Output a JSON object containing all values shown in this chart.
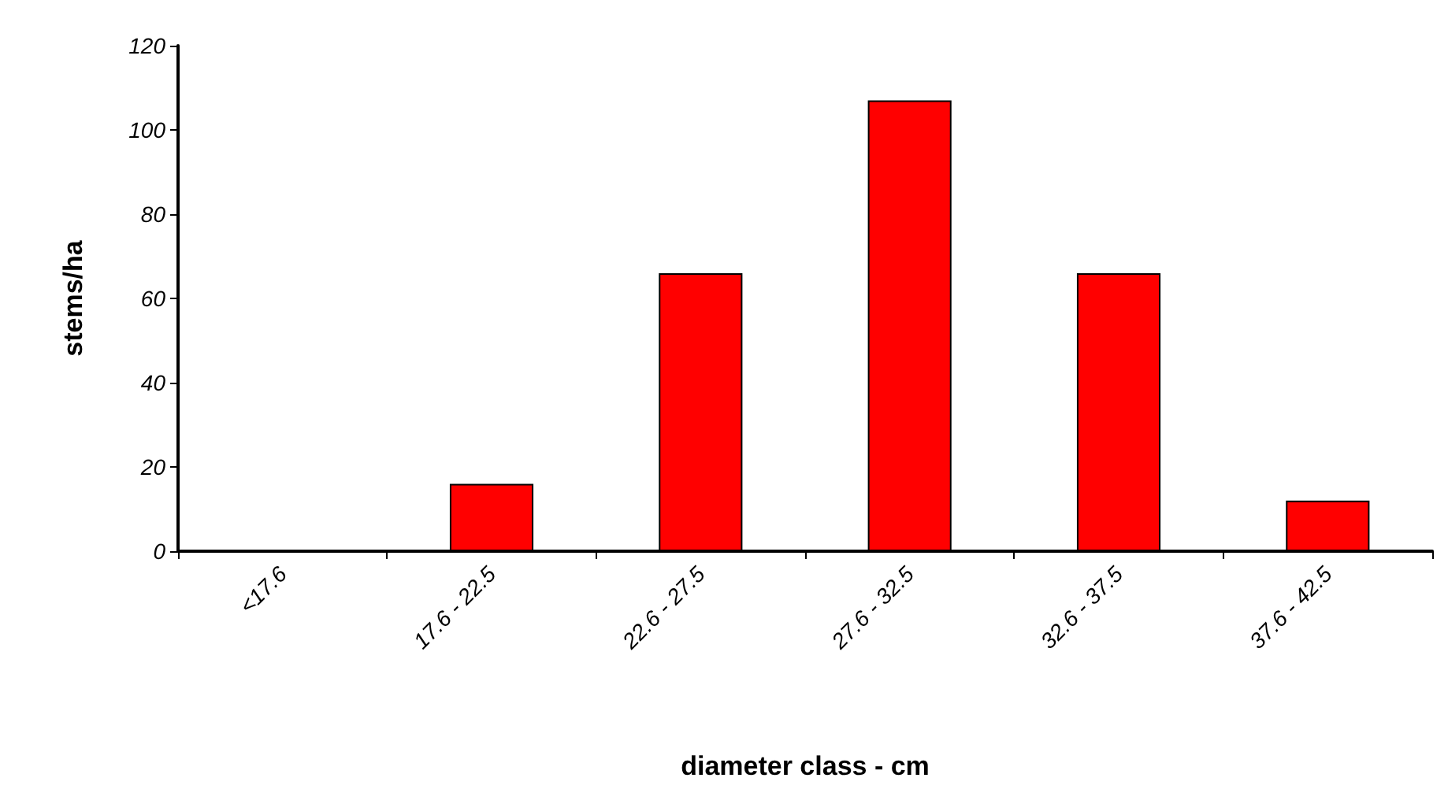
{
  "chart_data": {
    "type": "bar",
    "xlabel": "diameter class - cm",
    "ylabel": "stems/ha",
    "categories": [
      "<17.6",
      "17.6 - 22.5",
      "22.6 - 27.5",
      "27.6 - 32.5",
      "32.6 - 37.5",
      "37.6 - 42.5"
    ],
    "values": [
      0,
      16,
      66,
      107,
      66,
      12
    ],
    "color": "#ff0000",
    "ylim": [
      0,
      120
    ],
    "yticks": [
      0,
      20,
      40,
      60,
      80,
      100,
      120
    ],
    "grid": false
  }
}
